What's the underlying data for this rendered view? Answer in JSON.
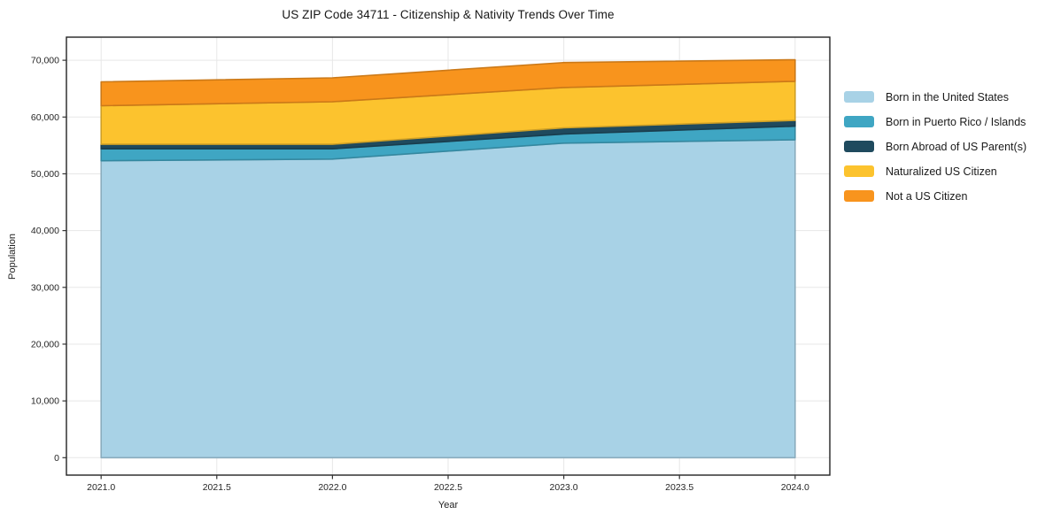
{
  "chart_data": {
    "type": "area",
    "stacked": true,
    "title": "US ZIP Code 34711 - Citizenship & Nativity Trends Over Time",
    "xlabel": "Year",
    "ylabel": "Population",
    "x": [
      2021,
      2022,
      2023,
      2024
    ],
    "series": [
      {
        "name": "Born in the United States",
        "color": "#a8d2e6",
        "values": [
          52300,
          52600,
          55400,
          56000
        ]
      },
      {
        "name": "Born in Puerto Rico / Islands",
        "color": "#3fa6c3",
        "values": [
          2100,
          1800,
          1600,
          2400
        ]
      },
      {
        "name": "Born Abroad of US Parent(s)",
        "color": "#1f4a5e",
        "values": [
          800,
          800,
          1100,
          1000
        ]
      },
      {
        "name": "Naturalized US Citizen",
        "color": "#fcc32e",
        "values": [
          6800,
          7500,
          7100,
          6900
        ]
      },
      {
        "name": "Not a US Citizen",
        "color": "#f8941d",
        "values": [
          4200,
          4200,
          4400,
          3800
        ]
      }
    ],
    "stack_totals": [
      66200,
      66900,
      69600,
      70100
    ],
    "xlim": [
      2020.85,
      2024.15
    ],
    "ylim": [
      -3070,
      74070
    ],
    "x_ticks": [
      {
        "value": 2021.0,
        "label": "2021.0"
      },
      {
        "value": 2021.5,
        "label": "2021.5"
      },
      {
        "value": 2022.0,
        "label": "2022.0"
      },
      {
        "value": 2022.5,
        "label": "2022.5"
      },
      {
        "value": 2023.0,
        "label": "2023.0"
      },
      {
        "value": 2023.5,
        "label": "2023.5"
      },
      {
        "value": 2024.0,
        "label": "2024.0"
      }
    ],
    "y_ticks": [
      {
        "value": 0,
        "label": "0"
      },
      {
        "value": 10000,
        "label": "10,000"
      },
      {
        "value": 20000,
        "label": "20,000"
      },
      {
        "value": 30000,
        "label": "30,000"
      },
      {
        "value": 40000,
        "label": "40,000"
      },
      {
        "value": 50000,
        "label": "50,000"
      },
      {
        "value": 60000,
        "label": "60,000"
      },
      {
        "value": 70000,
        "label": "70,000"
      }
    ],
    "grid": true,
    "grid_color": "#e7e7e7",
    "spine_color": "#222222",
    "tick_color": "#333333",
    "legend_position": "right"
  }
}
